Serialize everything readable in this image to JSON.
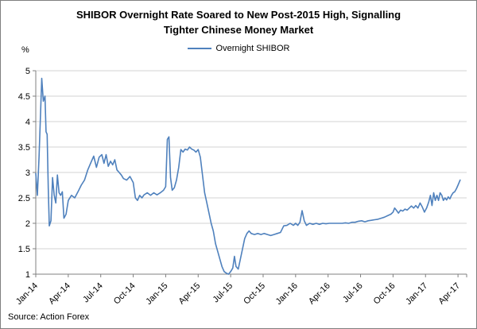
{
  "title": {
    "line1": "SHIBOR Overnight Rate Soared to New Post-2015 High, Signalling",
    "line2": "Tighter Chinese Money Market"
  },
  "source": "Source: Action Forex",
  "chart_data": {
    "type": "line",
    "title": "SHIBOR Overnight Rate Soared to New Post-2015 High, Signalling Tighter Chinese Money Market",
    "legend": "Overnight SHIBOR",
    "legend_position": "top-center",
    "ylabel": "%",
    "xlabel": "",
    "grid": "horizontal",
    "line_color": "#4f81bd",
    "grid_color": "#d3d3d3",
    "axis_color": "#808080",
    "ylim": [
      1,
      5
    ],
    "xlim": [
      0,
      39.8
    ],
    "y_ticks": [
      {
        "v": 1,
        "label": "1"
      },
      {
        "v": 1.5,
        "label": "1.5"
      },
      {
        "v": 2,
        "label": "2"
      },
      {
        "v": 2.5,
        "label": "2.5"
      },
      {
        "v": 3,
        "label": "3"
      },
      {
        "v": 3.5,
        "label": "3.5"
      },
      {
        "v": 4,
        "label": "4"
      },
      {
        "v": 4.5,
        "label": "4.5"
      },
      {
        "v": 5,
        "label": "5"
      }
    ],
    "x_ticks": [
      {
        "month": 0,
        "label": "Jan-14"
      },
      {
        "month": 3,
        "label": "Apr-14"
      },
      {
        "month": 6,
        "label": "Jul-14"
      },
      {
        "month": 9,
        "label": "Oct-14"
      },
      {
        "month": 12,
        "label": "Jan-15"
      },
      {
        "month": 15,
        "label": "Apr-15"
      },
      {
        "month": 18,
        "label": "Jul-15"
      },
      {
        "month": 21,
        "label": "Oct-15"
      },
      {
        "month": 24,
        "label": "Jan-16"
      },
      {
        "month": 27,
        "label": "Apr-16"
      },
      {
        "month": 30,
        "label": "Jul-16"
      },
      {
        "month": 33,
        "label": "Oct-16"
      },
      {
        "month": 36,
        "label": "Jan-17"
      },
      {
        "month": 39,
        "label": "Apr-17"
      }
    ],
    "series": [
      {
        "name": "Overnight SHIBOR",
        "points": [
          [
            0,
            2.98
          ],
          [
            0.15,
            2.55
          ],
          [
            0.3,
            3.3
          ],
          [
            0.45,
            4.2
          ],
          [
            0.55,
            4.85
          ],
          [
            0.7,
            4.4
          ],
          [
            0.85,
            4.5
          ],
          [
            0.95,
            3.8
          ],
          [
            1.05,
            3.75
          ],
          [
            1.15,
            2.7
          ],
          [
            1.25,
            1.95
          ],
          [
            1.4,
            2.05
          ],
          [
            1.55,
            2.9
          ],
          [
            1.7,
            2.55
          ],
          [
            1.85,
            2.4
          ],
          [
            2.0,
            2.95
          ],
          [
            2.15,
            2.6
          ],
          [
            2.3,
            2.55
          ],
          [
            2.45,
            2.62
          ],
          [
            2.6,
            2.1
          ],
          [
            2.8,
            2.18
          ],
          [
            3.0,
            2.45
          ],
          [
            3.3,
            2.55
          ],
          [
            3.6,
            2.5
          ],
          [
            3.9,
            2.62
          ],
          [
            4.2,
            2.75
          ],
          [
            4.5,
            2.85
          ],
          [
            4.8,
            3.05
          ],
          [
            5.1,
            3.2
          ],
          [
            5.35,
            3.32
          ],
          [
            5.6,
            3.1
          ],
          [
            5.85,
            3.3
          ],
          [
            6.1,
            3.35
          ],
          [
            6.3,
            3.18
          ],
          [
            6.5,
            3.35
          ],
          [
            6.7,
            3.12
          ],
          [
            6.9,
            3.22
          ],
          [
            7.1,
            3.15
          ],
          [
            7.3,
            3.25
          ],
          [
            7.5,
            3.05
          ],
          [
            7.7,
            3.0
          ],
          [
            7.9,
            2.95
          ],
          [
            8.1,
            2.88
          ],
          [
            8.4,
            2.85
          ],
          [
            8.7,
            2.92
          ],
          [
            9.0,
            2.8
          ],
          [
            9.2,
            2.5
          ],
          [
            9.4,
            2.45
          ],
          [
            9.6,
            2.55
          ],
          [
            9.8,
            2.5
          ],
          [
            10.0,
            2.56
          ],
          [
            10.3,
            2.6
          ],
          [
            10.6,
            2.55
          ],
          [
            10.9,
            2.6
          ],
          [
            11.2,
            2.56
          ],
          [
            11.5,
            2.6
          ],
          [
            11.8,
            2.65
          ],
          [
            12.0,
            2.72
          ],
          [
            12.15,
            3.65
          ],
          [
            12.3,
            3.7
          ],
          [
            12.45,
            2.9
          ],
          [
            12.6,
            2.65
          ],
          [
            12.8,
            2.7
          ],
          [
            13.0,
            2.85
          ],
          [
            13.2,
            3.1
          ],
          [
            13.4,
            3.45
          ],
          [
            13.6,
            3.4
          ],
          [
            13.8,
            3.46
          ],
          [
            14.0,
            3.44
          ],
          [
            14.2,
            3.5
          ],
          [
            14.4,
            3.46
          ],
          [
            14.6,
            3.44
          ],
          [
            14.8,
            3.4
          ],
          [
            15.0,
            3.45
          ],
          [
            15.2,
            3.3
          ],
          [
            15.4,
            2.95
          ],
          [
            15.6,
            2.6
          ],
          [
            15.8,
            2.4
          ],
          [
            16.0,
            2.2
          ],
          [
            16.2,
            2.0
          ],
          [
            16.4,
            1.85
          ],
          [
            16.6,
            1.6
          ],
          [
            16.8,
            1.45
          ],
          [
            17.0,
            1.3
          ],
          [
            17.2,
            1.15
          ],
          [
            17.4,
            1.05
          ],
          [
            17.6,
            1.02
          ],
          [
            17.8,
            1.0
          ],
          [
            18.0,
            1.05
          ],
          [
            18.2,
            1.12
          ],
          [
            18.35,
            1.35
          ],
          [
            18.5,
            1.15
          ],
          [
            18.7,
            1.1
          ],
          [
            18.9,
            1.3
          ],
          [
            19.1,
            1.5
          ],
          [
            19.3,
            1.7
          ],
          [
            19.5,
            1.8
          ],
          [
            19.7,
            1.85
          ],
          [
            19.9,
            1.8
          ],
          [
            20.2,
            1.78
          ],
          [
            20.5,
            1.8
          ],
          [
            20.8,
            1.78
          ],
          [
            21.1,
            1.8
          ],
          [
            21.4,
            1.78
          ],
          [
            21.7,
            1.76
          ],
          [
            22.0,
            1.78
          ],
          [
            22.3,
            1.8
          ],
          [
            22.6,
            1.82
          ],
          [
            22.9,
            1.95
          ],
          [
            23.2,
            1.96
          ],
          [
            23.5,
            2.0
          ],
          [
            23.8,
            1.96
          ],
          [
            24.0,
            2.0
          ],
          [
            24.2,
            1.96
          ],
          [
            24.4,
            2.02
          ],
          [
            24.6,
            2.25
          ],
          [
            24.8,
            2.05
          ],
          [
            25.0,
            1.96
          ],
          [
            25.3,
            2.0
          ],
          [
            25.6,
            1.98
          ],
          [
            25.9,
            2.0
          ],
          [
            26.2,
            1.98
          ],
          [
            26.5,
            2.0
          ],
          [
            26.8,
            1.99
          ],
          [
            27.1,
            2.0
          ],
          [
            27.4,
            2.0
          ],
          [
            27.7,
            2.0
          ],
          [
            28.0,
            2.0
          ],
          [
            28.3,
            2.0
          ],
          [
            28.6,
            2.01
          ],
          [
            28.9,
            2.0
          ],
          [
            29.2,
            2.02
          ],
          [
            29.5,
            2.02
          ],
          [
            29.8,
            2.04
          ],
          [
            30.1,
            2.05
          ],
          [
            30.4,
            2.03
          ],
          [
            30.7,
            2.05
          ],
          [
            31.0,
            2.06
          ],
          [
            31.3,
            2.07
          ],
          [
            31.6,
            2.08
          ],
          [
            31.9,
            2.1
          ],
          [
            32.2,
            2.12
          ],
          [
            32.5,
            2.15
          ],
          [
            32.8,
            2.18
          ],
          [
            33.0,
            2.22
          ],
          [
            33.15,
            2.3
          ],
          [
            33.3,
            2.26
          ],
          [
            33.5,
            2.2
          ],
          [
            33.7,
            2.26
          ],
          [
            33.9,
            2.24
          ],
          [
            34.1,
            2.28
          ],
          [
            34.3,
            2.26
          ],
          [
            34.5,
            2.3
          ],
          [
            34.7,
            2.34
          ],
          [
            34.9,
            2.3
          ],
          [
            35.1,
            2.35
          ],
          [
            35.3,
            2.3
          ],
          [
            35.5,
            2.4
          ],
          [
            35.7,
            2.32
          ],
          [
            35.9,
            2.22
          ],
          [
            36.1,
            2.3
          ],
          [
            36.3,
            2.42
          ],
          [
            36.45,
            2.55
          ],
          [
            36.6,
            2.35
          ],
          [
            36.75,
            2.6
          ],
          [
            36.9,
            2.45
          ],
          [
            37.05,
            2.55
          ],
          [
            37.2,
            2.45
          ],
          [
            37.35,
            2.6
          ],
          [
            37.5,
            2.55
          ],
          [
            37.65,
            2.45
          ],
          [
            37.8,
            2.5
          ],
          [
            37.95,
            2.46
          ],
          [
            38.1,
            2.52
          ],
          [
            38.25,
            2.48
          ],
          [
            38.4,
            2.55
          ],
          [
            38.55,
            2.6
          ],
          [
            38.7,
            2.62
          ],
          [
            38.85,
            2.68
          ],
          [
            39.0,
            2.75
          ],
          [
            39.2,
            2.85
          ]
        ]
      }
    ]
  }
}
